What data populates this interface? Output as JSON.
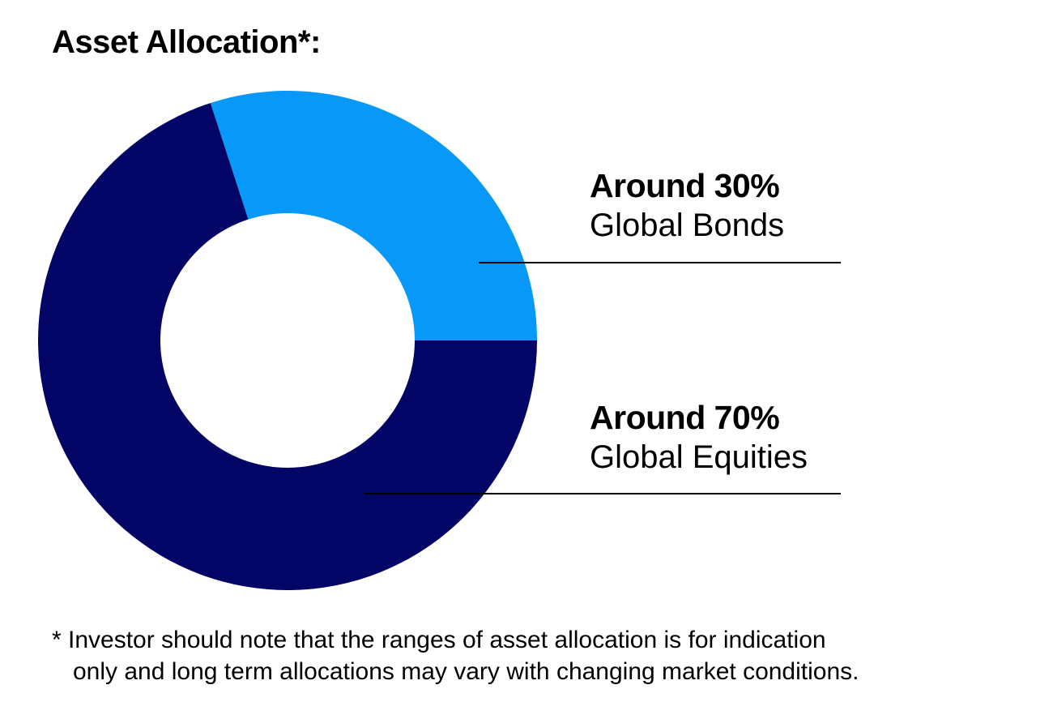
{
  "title": "Asset Allocation*:",
  "chart_data": {
    "type": "pie",
    "variant": "donut",
    "slices": [
      {
        "label": "Global Bonds",
        "value_label": "Around 30%",
        "value": 30,
        "color": "#0898f8"
      },
      {
        "label": "Global Equities",
        "value_label": "Around 70%",
        "value": 70,
        "color": "#020565"
      }
    ],
    "legend_placement": "right"
  },
  "labels": {
    "bonds": {
      "pct": "Around 30%",
      "name": "Global Bonds"
    },
    "equities": {
      "pct": "Around 70%",
      "name": "Global Equities"
    }
  },
  "footnote": {
    "line1": "* Investor should note that the ranges of asset allocation is for indication",
    "line2": "only and long term allocations may vary with changing market conditions."
  }
}
